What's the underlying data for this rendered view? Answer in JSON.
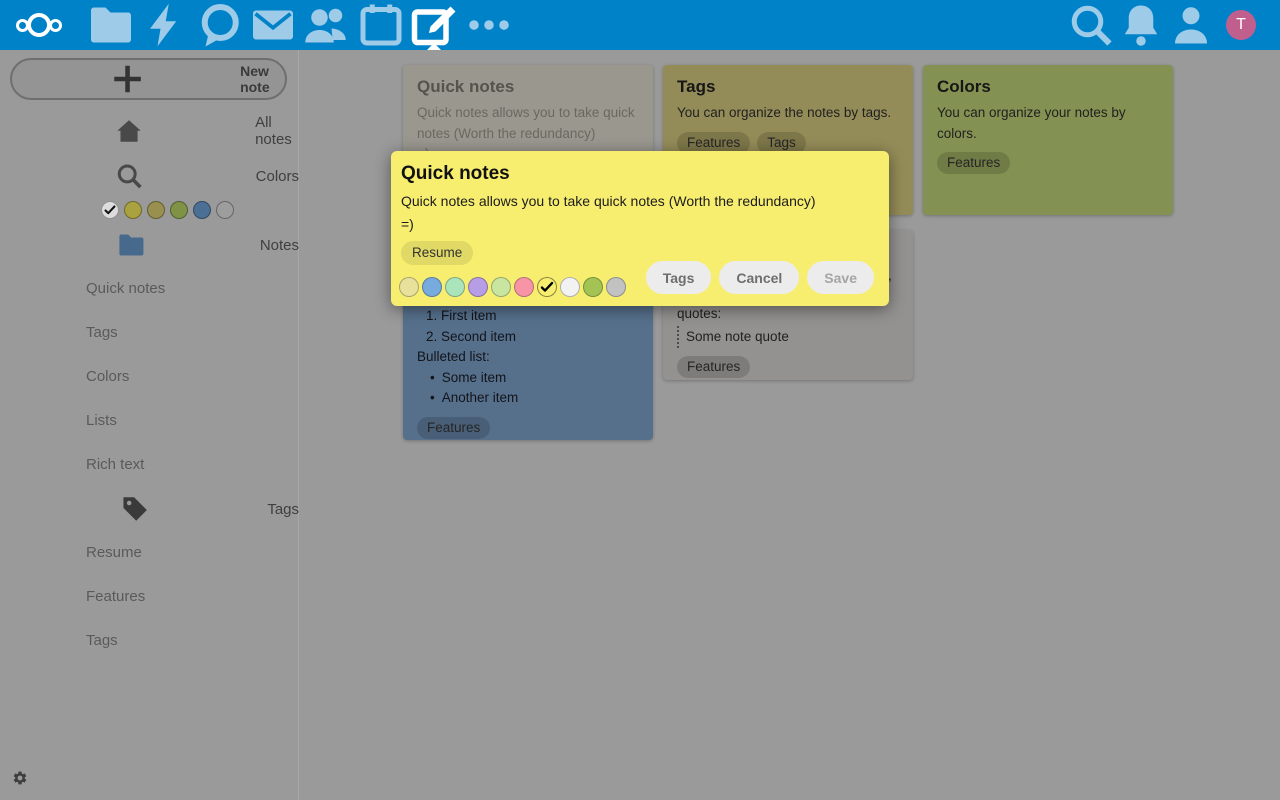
{
  "header": {
    "bg_color": "#0082c9",
    "logo": "nextcloud-logo",
    "apps": [
      {
        "icon": "folder-icon"
      },
      {
        "icon": "lightning-icon"
      },
      {
        "icon": "chat-bubble-icon"
      },
      {
        "icon": "envelope-icon"
      },
      {
        "icon": "people-icon"
      },
      {
        "icon": "calendar-icon"
      },
      {
        "icon": "note-pen-icon",
        "active": true
      },
      {
        "icon": "ellipsis-icon"
      }
    ],
    "right_icons": [
      {
        "icon": "search-icon"
      },
      {
        "icon": "bell-icon"
      },
      {
        "icon": "person-icon"
      }
    ],
    "avatar": {
      "initial": "T",
      "color": "#c05e8e"
    }
  },
  "sidebar": {
    "new_note_label": "New note",
    "nav": [
      {
        "label": "All notes",
        "icon": "home-icon"
      },
      {
        "label": "Colors",
        "icon": "magnifier-icon"
      }
    ],
    "color_swatches": [
      {
        "color": "#dcdcdc",
        "checked": true,
        "icon": "check-icon"
      },
      {
        "color": "#aaa13f"
      },
      {
        "color": "#99904f"
      },
      {
        "color": "#7f9246"
      },
      {
        "color": "#4c6f96"
      },
      {
        "color": "#9d9d9d"
      }
    ],
    "groups": [
      {
        "label": "Notes",
        "icon": "folder-icon",
        "icon_color": "#46698c",
        "items": [
          "Quick notes",
          "Tags",
          "Colors",
          "Lists",
          "Rich text"
        ]
      },
      {
        "label": "Tags",
        "icon": "tag-icon",
        "icon_color": "#3a3a3a",
        "items": [
          "Resume",
          "Features",
          "Tags"
        ]
      }
    ],
    "settings_icon": "gear-icon"
  },
  "board": {
    "bg_color": "#9a9a9a",
    "cards": [
      {
        "id": "quick-notes",
        "title": "Quick notes",
        "bg": "#9a978f",
        "title_color": "#55534c",
        "text_color": "#6b6860",
        "body": [
          {
            "type": "p",
            "text": "Quick notes allows you to take quick notes (Worth the redundancy)"
          },
          {
            "type": "p",
            "text": "=)"
          }
        ],
        "chips": []
      },
      {
        "id": "tags",
        "title": "Tags",
        "bg": "#948c58",
        "title_color": "#161616",
        "text_color": "#1f1f1f",
        "body": [
          {
            "type": "p",
            "text": "You can organize the notes by tags."
          }
        ],
        "chips": [
          "Features",
          "Tags"
        ]
      },
      {
        "id": "colors",
        "title": "Colors",
        "bg": "#839253",
        "title_color": "#161616",
        "text_color": "#1f1f1f",
        "body": [
          {
            "type": "p",
            "text": "You can organize your notes by colors."
          }
        ],
        "chips": [
          "Features"
        ]
      },
      {
        "id": "lists",
        "title": "",
        "bg": "#56708c",
        "title_color": "#12141a",
        "text_color": "#12141a",
        "body": [
          {
            "type": "spacer",
            "h": 62
          },
          {
            "type": "num",
            "text": "1. First item"
          },
          {
            "type": "num",
            "text": "2. Second item"
          },
          {
            "type": "p",
            "text": "Bulleted list:"
          },
          {
            "type": "bullet",
            "text": "Some item"
          },
          {
            "type": "bullet",
            "text": "Another item"
          }
        ],
        "chips": [
          "Features"
        ]
      },
      {
        "id": "quotes",
        "title": "",
        "bg": "#939290",
        "title_color": "#1f1f1f",
        "text_color": "#1f1f1f",
        "body": [
          {
            "type": "spacer",
            "h": 60
          },
          {
            "type": "p",
            "text": "quotes:"
          },
          {
            "type": "quote",
            "text": "Some note quote"
          }
        ],
        "chips": [
          "Features"
        ],
        "fragment": ","
      }
    ]
  },
  "modal": {
    "bg_color": "#f7ee70",
    "title": "Quick notes",
    "body_line1": "Quick notes allows you to take quick notes (Worth the redundancy)",
    "body_line2": "=)",
    "tag_chips": [
      "Resume"
    ],
    "palette": [
      {
        "color": "#e7e19c"
      },
      {
        "color": "#77aadd"
      },
      {
        "color": "#aae4ba"
      },
      {
        "color": "#b79ce6"
      },
      {
        "color": "#c8e6a0"
      },
      {
        "color": "#f795a6"
      },
      {
        "color": "#f7ee70",
        "selected": true,
        "icon": "check-icon"
      },
      {
        "color": "#f2f2f2"
      },
      {
        "color": "#a3c455"
      },
      {
        "color": "#c2c2c2"
      }
    ],
    "buttons": [
      {
        "label": "Tags",
        "style": "normal"
      },
      {
        "label": "Cancel",
        "style": "normal"
      },
      {
        "label": "Save",
        "style": "disabled"
      }
    ]
  }
}
